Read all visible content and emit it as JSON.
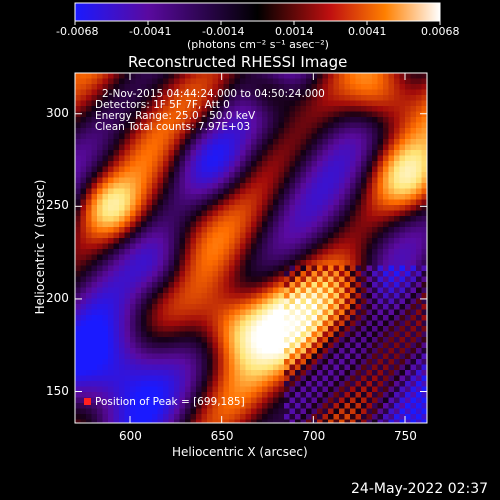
{
  "chart_data": {
    "type": "heatmap",
    "title": "Reconstructed RHESSI Image",
    "xlabel": "Heliocentric X (arcsec)",
    "ylabel": "Heliocentric Y (arcsec)",
    "xlim": [
      570,
      762
    ],
    "ylim": [
      133,
      322
    ],
    "x_ticks": [
      600,
      650,
      700,
      750
    ],
    "y_ticks": [
      150,
      200,
      250,
      300
    ],
    "colorbar": {
      "ticks": [
        "-0.0068",
        "-0.0041",
        "-0.0014",
        "0.0014",
        "0.0041",
        "0.0068"
      ],
      "unit_text": "(photons cm⁻² s⁻¹ asec⁻²)",
      "range": [
        -0.0068,
        0.0068
      ],
      "colors": [
        "#1a1aff",
        "#5a0aa0",
        "#000000",
        "#c01010",
        "#ff8000",
        "#ffffff"
      ]
    },
    "annotations": [
      "2-Nov-2015 04:44:24.000 to 04:50:24.000",
      "Detectors: 1F 5F 7F, Att 0",
      "Energy Range: 25.0 - 50.0 keV",
      "Clean    Total counts: 7.97E+03"
    ],
    "peak_label": "Position of Peak = [699,185]",
    "peak_position": [
      699,
      185
    ],
    "grid": false
  },
  "footer": {
    "timestamp": "24-May-2022 02:37"
  }
}
